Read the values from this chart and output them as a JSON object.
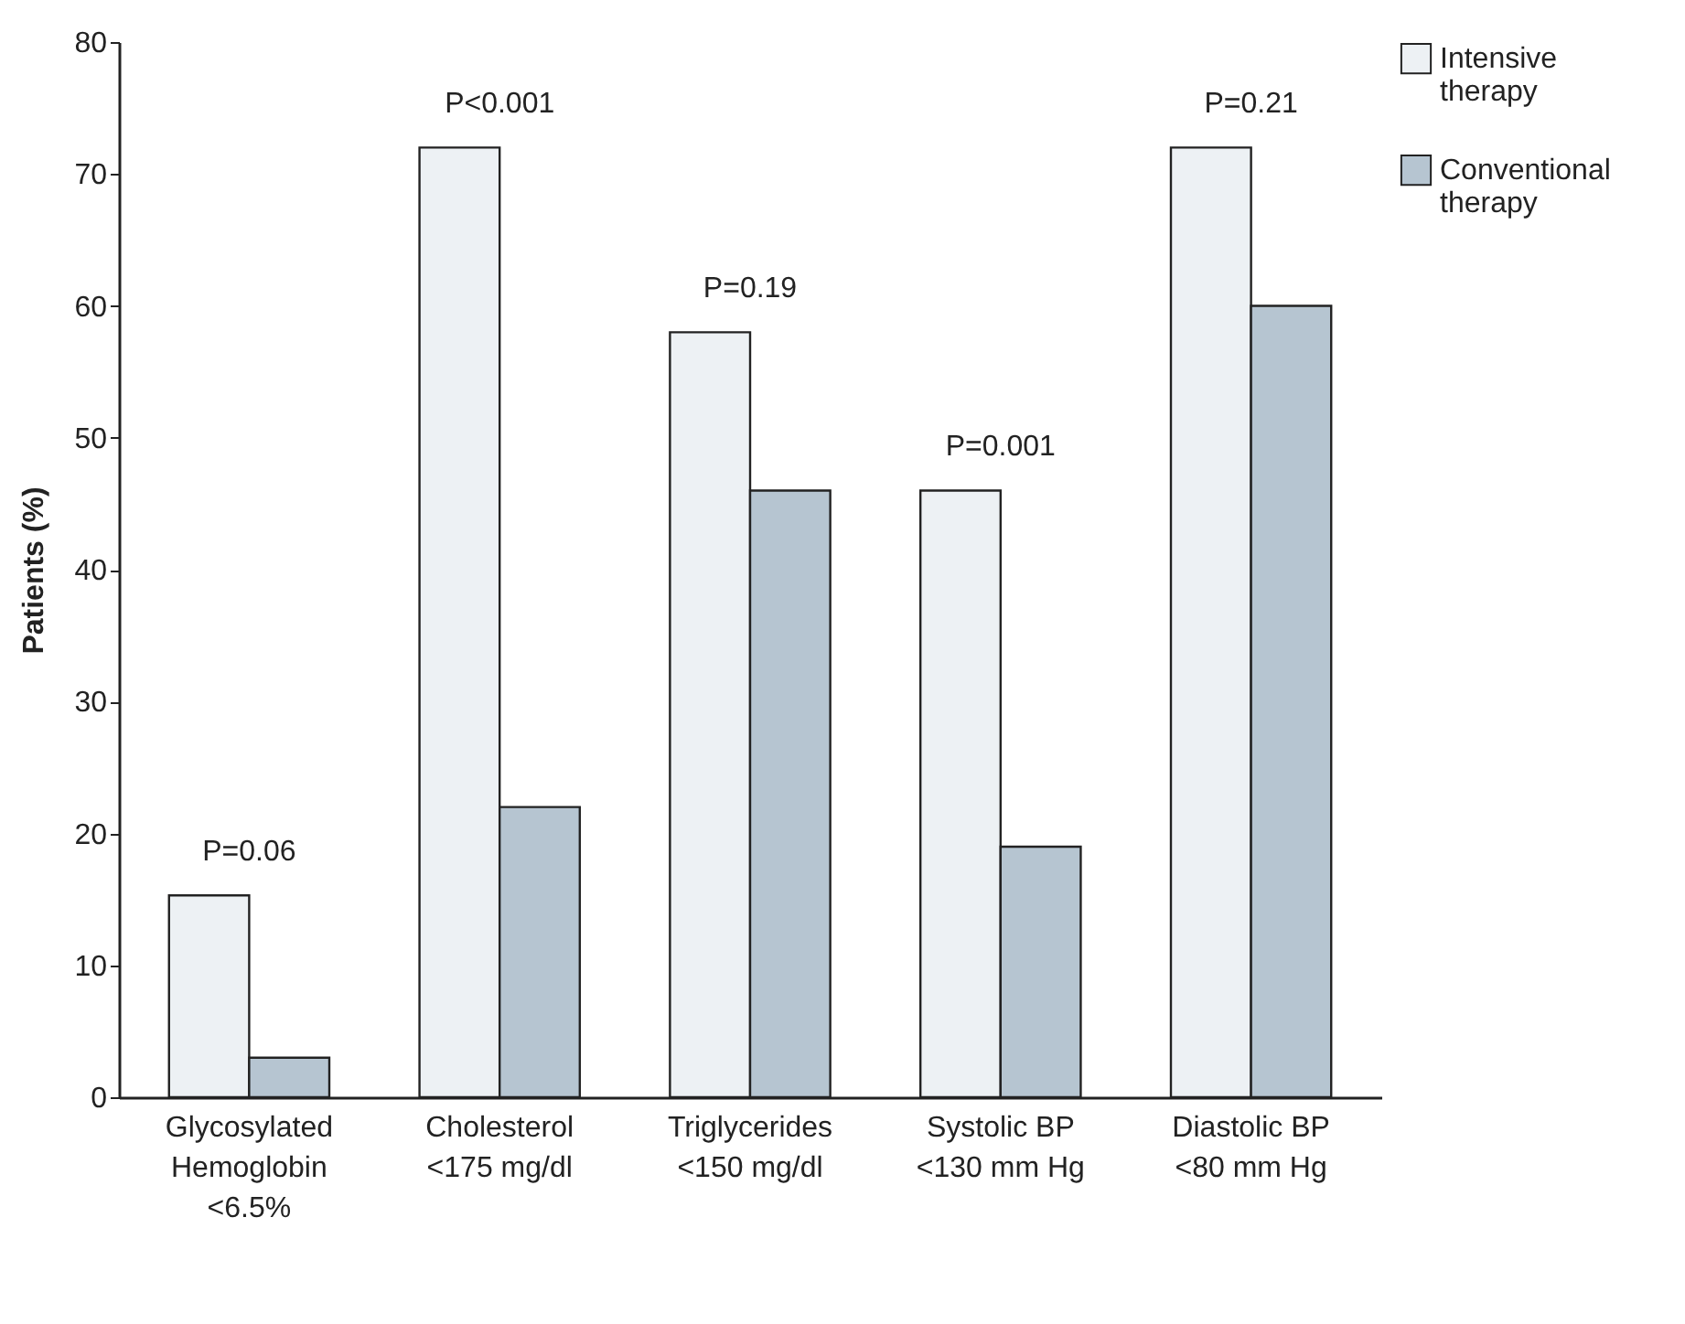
{
  "chart_data": {
    "type": "bar",
    "ylabel": "Patients (%)",
    "categories": [
      "Glycosylated\nHemoglobin\n<6.5%",
      "Cholesterol\n<175 mg/dl",
      "Triglycerides\n<150 mg/dl",
      "Systolic BP\n<130 mm Hg",
      "Diastolic BP\n<80 mm Hg"
    ],
    "series": [
      {
        "name": "Intensive therapy",
        "color": "#edf1f4",
        "values": [
          15.3,
          72,
          58,
          46,
          72
        ]
      },
      {
        "name": "Conventional therapy",
        "color": "#b6c5d1",
        "values": [
          3,
          22,
          46,
          19,
          60
        ]
      }
    ],
    "ylim": [
      0,
      80
    ],
    "yticks": [
      0,
      10,
      20,
      30,
      40,
      50,
      60,
      70,
      80
    ],
    "grid": false,
    "legend": "top right",
    "annotations": [
      {
        "text": "P=0.06",
        "x": "Glycosylated\nHemoglobin\n<6.5%",
        "y": 15.3
      },
      {
        "text": "P<0.001",
        "x": "Cholesterol\n<175 mg/dl",
        "y": 72
      },
      {
        "text": "P=0.19",
        "x": "Triglycerides\n<150 mg/dl",
        "y": 58
      },
      {
        "text": "P=0.001",
        "x": "Systolic BP\n<130 mm Hg",
        "y": 46
      },
      {
        "text": "P=0.21",
        "x": "Diastolic BP\n<80 mm Hg",
        "y": 72
      }
    ]
  }
}
